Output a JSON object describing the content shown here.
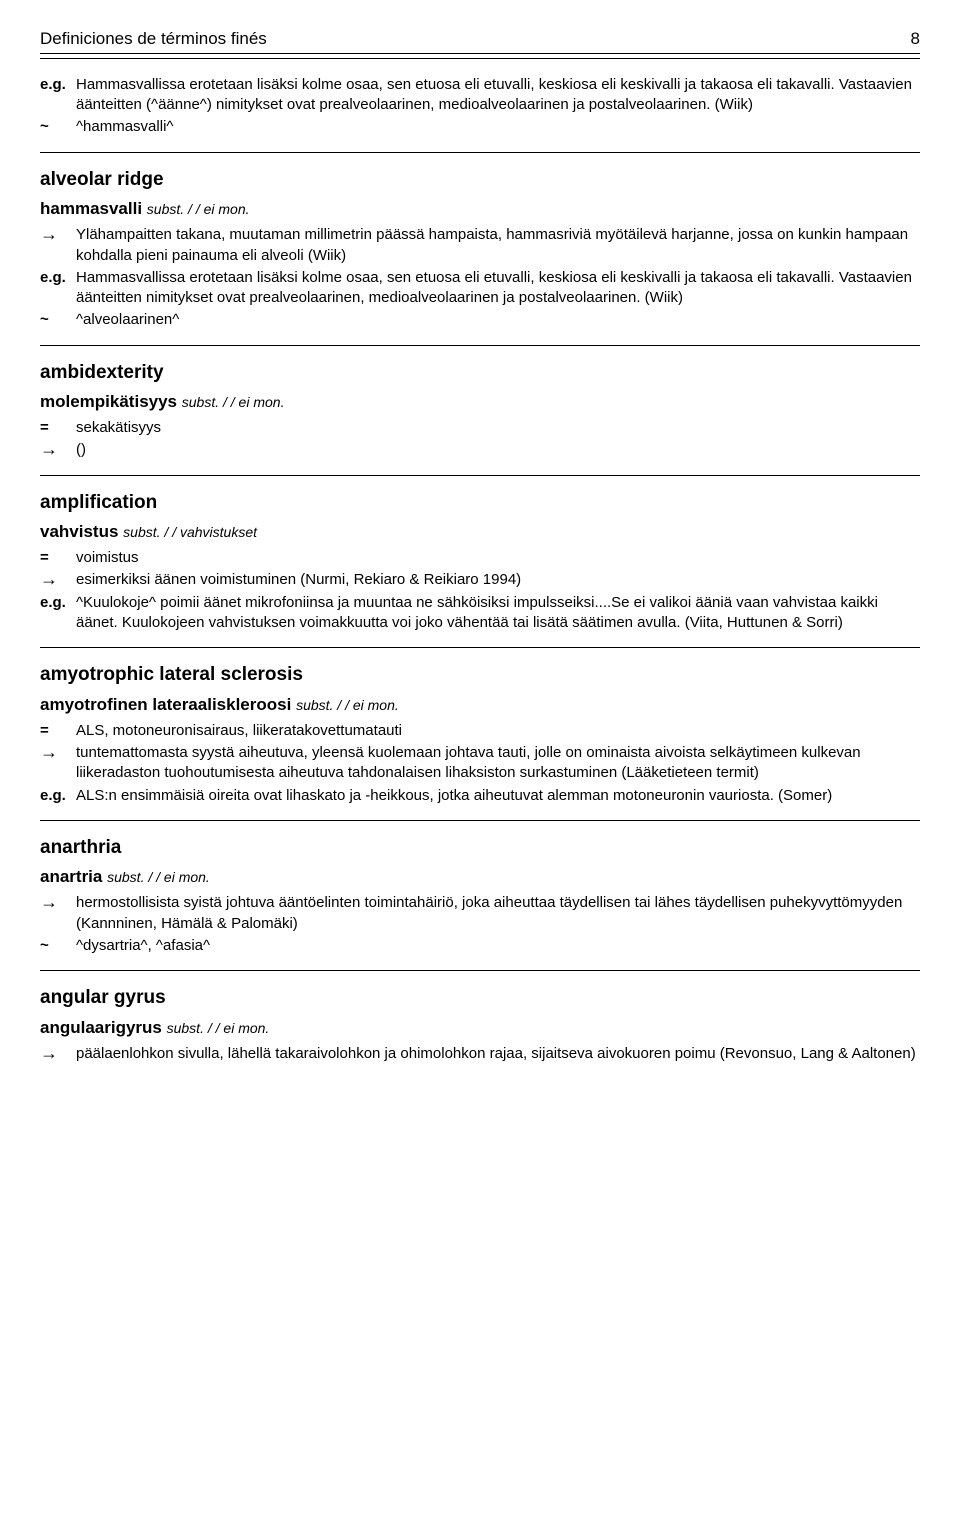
{
  "header": {
    "title": "Definiciones de términos finés",
    "page": "8"
  },
  "entries": [
    {
      "lines": [
        {
          "marker": "e.g.",
          "text": "Hammasvallissa erotetaan lisäksi kolme osaa, sen etuosa eli etuvalli, keskiosa eli keskivalli ja takaosa eli takavalli. Vastaavien äänteitten (^äänne^) nimitykset ovat prealveolaarinen, medioalveolaarinen ja postalveolaarinen. (Wiik)"
        },
        {
          "marker": "~",
          "text": "^hammasvalli^"
        }
      ]
    },
    {
      "headword": "alveolar ridge",
      "subhead": "hammasvalli",
      "gram": "subst. / / ei mon.",
      "lines": [
        {
          "marker": "→",
          "text": "Ylähampaitten takana, muutaman millimetrin päässä hampaista, hammasriviä myötäilevä harjanne, jossa on kunkin hampaan kohdalla pieni painauma eli alveoli (Wiik)"
        },
        {
          "marker": "e.g.",
          "text": "Hammasvallissa erotetaan lisäksi kolme osaa, sen etuosa eli etuvalli, keskiosa eli keskivalli ja takaosa eli takavalli. Vastaavien äänteitten nimitykset ovat prealveolaarinen, medioalveolaarinen ja postalveolaarinen. (Wiik)"
        },
        {
          "marker": "~",
          "text": "^alveolaarinen^"
        }
      ]
    },
    {
      "headword": "ambidexterity",
      "subhead": "molempikätisyys",
      "gram": "subst. / / ei mon.",
      "lines": [
        {
          "marker": "=",
          "text": "sekakätisyys"
        },
        {
          "marker": "→",
          "text": "()"
        }
      ]
    },
    {
      "headword": "amplification",
      "subhead": "vahvistus",
      "gram": "subst. / / vahvistukset",
      "lines": [
        {
          "marker": "=",
          "text": "voimistus"
        },
        {
          "marker": "→",
          "text": "esimerkiksi äänen voimistuminen (Nurmi, Rekiaro & Reikiaro 1994)"
        },
        {
          "marker": "e.g.",
          "text": "^Kuulokoje^ poimii äänet mikrofoniinsa ja muuntaa ne sähköisiksi impulsseiksi....Se ei valikoi ääniä vaan vahvistaa kaikki äänet. Kuulokojeen vahvistuksen voimakkuutta voi joko vähentää tai lisätä säätimen avulla. (Viita, Huttunen & Sorri)"
        }
      ]
    },
    {
      "headword": "amyotrophic lateral sclerosis",
      "subhead": "amyotrofinen lateraaliskleroosi",
      "gram": "subst. / / ei mon.",
      "lines": [
        {
          "marker": "=",
          "text": "ALS, motoneuronisairaus, liikeratakovettumatauti"
        },
        {
          "marker": "→",
          "text": "tuntemattomasta syystä aiheutuva, yleensä kuolemaan johtava tauti, jolle on ominaista aivoista selkäytimeen kulkevan liikeradaston tuohoutumisesta aiheutuva tahdonalaisen lihaksiston surkastuminen (Lääketieteen termit)"
        },
        {
          "marker": "e.g.",
          "text": "ALS:n ensimmäisiä oireita ovat lihaskato ja -heikkous, jotka aiheutuvat alemman motoneuronin vauriosta. (Somer)"
        }
      ]
    },
    {
      "headword": "anarthria",
      "subhead": "anartria",
      "gram": "subst. / / ei mon.",
      "lines": [
        {
          "marker": "→",
          "text": "hermostollisista syistä johtuva ääntöelinten toimintahäiriö, joka aiheuttaa täydellisen tai lähes täydellisen puhekyvyttömyyden (Kannninen, Hämälä & Palomäki)"
        },
        {
          "marker": "~",
          "text": "^dysartria^, ^afasia^"
        }
      ]
    },
    {
      "headword": "angular gyrus",
      "subhead": "angulaarigyrus",
      "gram": "subst. / / ei mon.",
      "lines": [
        {
          "marker": "→",
          "text": "päälaenlohkon sivulla, lähellä takaraivolohkon ja ohimolohkon rajaa, sijaitseva aivokuoren poimu (Revonsuo, Lang & Aaltonen)"
        }
      ]
    }
  ]
}
